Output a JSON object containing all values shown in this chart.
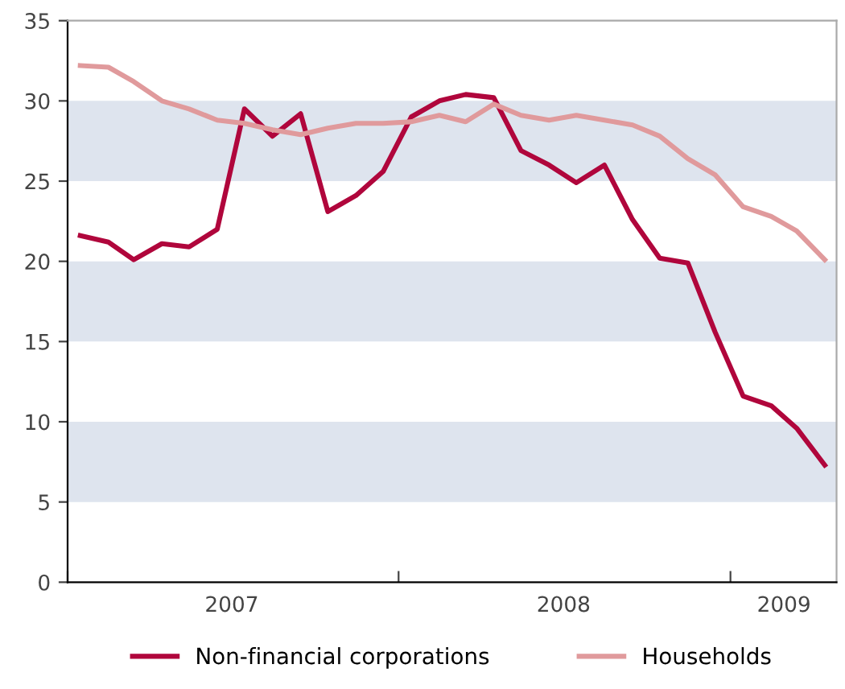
{
  "chart_data": {
    "type": "line",
    "x": [
      "2007-01-15",
      "2007-02-15",
      "2007-03-15",
      "2007-04-15",
      "2007-05-15",
      "2007-06-15",
      "2007-07-15",
      "2007-08-15",
      "2007-09-15",
      "2007-10-15",
      "2007-11-15",
      "2007-12-15",
      "2008-01-15",
      "2008-02-15",
      "2008-03-15",
      "2008-04-15",
      "2008-05-15",
      "2008-06-15",
      "2008-07-15",
      "2008-08-15",
      "2008-09-15",
      "2008-10-15",
      "2008-11-15",
      "2008-12-15",
      "2009-01-15",
      "2009-02-15",
      "2009-03-15",
      "2009-04-15"
    ],
    "series": [
      {
        "name": "Non-financial corporations",
        "color": "#b0063c",
        "values": [
          21.6,
          21.2,
          20.1,
          21.1,
          20.9,
          22.0,
          29.5,
          27.8,
          29.2,
          23.1,
          24.1,
          25.6,
          29.0,
          30.0,
          30.4,
          30.2,
          26.9,
          26.0,
          24.9,
          26.0,
          22.6,
          20.2,
          19.9,
          15.6,
          11.6,
          11.0,
          9.6,
          7.3
        ]
      },
      {
        "name": "Households",
        "color": "#e09a9c",
        "values": [
          32.2,
          32.1,
          31.2,
          30.0,
          29.5,
          28.8,
          28.6,
          28.2,
          27.9,
          28.3,
          28.6,
          28.6,
          28.7,
          29.1,
          28.7,
          29.8,
          29.1,
          28.8,
          29.1,
          28.8,
          28.5,
          27.8,
          26.4,
          25.4,
          23.4,
          22.8,
          21.9,
          20.1
        ]
      }
    ],
    "xlim": [
      "2007-01-01",
      "2009-04-28"
    ],
    "xticks": [
      {
        "value": "2007-01-01",
        "label": null
      },
      {
        "value": "2007-07-01",
        "label": "2007"
      },
      {
        "value": "2008-01-01",
        "label": null
      },
      {
        "value": "2008-07-01",
        "label": "2008"
      },
      {
        "value": "2009-01-01",
        "label": null
      },
      {
        "value": "2009-03-01",
        "label": "2009"
      }
    ],
    "ylim": [
      0,
      35
    ],
    "yticks": [
      0,
      5,
      10,
      15,
      20,
      25,
      30,
      35
    ],
    "bands": [
      {
        "axis": "y",
        "from": 5,
        "to": 10,
        "color": "#dee4ee"
      },
      {
        "axis": "y",
        "from": 15,
        "to": 20,
        "color": "#dee4ee"
      },
      {
        "axis": "y",
        "from": 25,
        "to": 30,
        "color": "#dee4ee"
      }
    ],
    "legend": "bottom",
    "marker": "none",
    "line_style": "solid",
    "grid": false
  }
}
